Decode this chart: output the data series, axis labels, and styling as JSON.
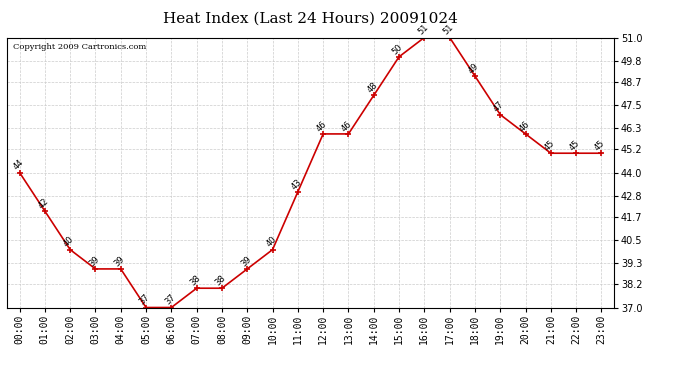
{
  "title": "Heat Index (Last 24 Hours) 20091024",
  "copyright": "Copyright 2009 Cartronics.com",
  "hours": [
    "00:00",
    "01:00",
    "02:00",
    "03:00",
    "04:00",
    "05:00",
    "06:00",
    "07:00",
    "08:00",
    "09:00",
    "10:00",
    "11:00",
    "12:00",
    "13:00",
    "14:00",
    "15:00",
    "16:00",
    "17:00",
    "18:00",
    "19:00",
    "20:00",
    "21:00",
    "22:00",
    "23:00"
  ],
  "values": [
    44,
    42,
    40,
    39,
    39,
    37,
    37,
    38,
    38,
    39,
    40,
    43,
    46,
    46,
    48,
    50,
    51,
    51,
    49,
    47,
    46,
    45,
    45,
    45
  ],
  "ylim": [
    37.0,
    51.0
  ],
  "yticks": [
    37.0,
    38.2,
    39.3,
    40.5,
    41.7,
    42.8,
    44.0,
    45.2,
    46.3,
    47.5,
    48.7,
    49.8,
    51.0
  ],
  "line_color": "#cc0000",
  "marker_color": "#cc0000",
  "bg_color": "#ffffff",
  "grid_color": "#cccccc",
  "title_fontsize": 11,
  "copyright_fontsize": 6,
  "label_fontsize": 6,
  "tick_fontsize": 7
}
